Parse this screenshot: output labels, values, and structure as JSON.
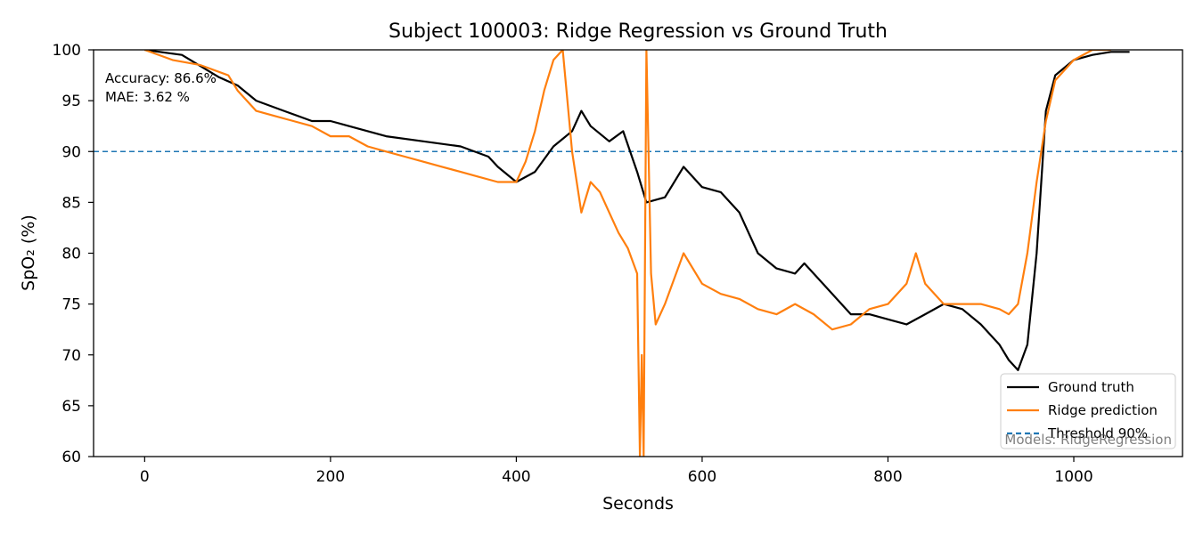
{
  "chart_data": {
    "type": "line",
    "title": "Subject 100003: Ridge Regression vs Ground Truth",
    "xlabel": "Seconds",
    "ylabel": "SpO₂ (%)",
    "xlim": [
      -55,
      1117
    ],
    "ylim": [
      60,
      100
    ],
    "x_ticks": [
      0,
      200,
      400,
      600,
      800,
      1000
    ],
    "y_ticks": [
      60,
      65,
      70,
      75,
      80,
      85,
      90,
      95,
      100
    ],
    "grid": false,
    "legend_position": "lower-right",
    "annotations": [
      "Accuracy: 86.6%",
      "MAE: 3.62 %"
    ],
    "watermark": "Models: RidgeRegression",
    "threshold": {
      "name": "Threshold 90%",
      "value": 90,
      "color": "#1f77b4",
      "style": "dashed"
    },
    "series": [
      {
        "name": "Ground truth",
        "color": "#000000",
        "x": [
          0,
          40,
          80,
          100,
          120,
          150,
          180,
          200,
          220,
          260,
          300,
          340,
          370,
          380,
          400,
          420,
          440,
          460,
          470,
          480,
          500,
          515,
          530,
          540,
          560,
          580,
          600,
          620,
          640,
          660,
          680,
          700,
          710,
          730,
          760,
          780,
          800,
          820,
          840,
          860,
          880,
          900,
          920,
          930,
          940,
          950,
          960,
          970,
          980,
          1000,
          1020,
          1040,
          1060
        ],
        "y": [
          100,
          99.5,
          97.3,
          96.5,
          95,
          94,
          93,
          93,
          92.5,
          91.5,
          91,
          90.5,
          89.5,
          88.5,
          87,
          88,
          90.5,
          92,
          94,
          92.5,
          91,
          92,
          88,
          85,
          85.5,
          88.5,
          86.5,
          86,
          84,
          80,
          78.5,
          78,
          79,
          77,
          74,
          74,
          73.5,
          73,
          74,
          75,
          74.5,
          73,
          71,
          69.5,
          68.5,
          71,
          80,
          94,
          97.5,
          99,
          99.5,
          99.8,
          99.8
        ]
      },
      {
        "name": "Ridge prediction",
        "color": "#ff7f0e",
        "x": [
          0,
          30,
          60,
          90,
          100,
          120,
          140,
          160,
          180,
          200,
          220,
          240,
          260,
          280,
          300,
          320,
          340,
          360,
          380,
          400,
          410,
          420,
          430,
          440,
          450,
          460,
          470,
          480,
          490,
          500,
          510,
          520,
          530,
          533,
          535,
          537,
          540,
          545,
          550,
          560,
          580,
          600,
          620,
          640,
          660,
          680,
          700,
          720,
          740,
          760,
          780,
          800,
          820,
          830,
          840,
          860,
          880,
          900,
          920,
          930,
          940,
          950,
          960,
          970,
          980,
          1000,
          1020,
          1040
        ],
        "y": [
          100,
          99,
          98.5,
          97.5,
          96,
          94,
          93.5,
          93,
          92.5,
          91.5,
          91.5,
          90.5,
          90,
          89.5,
          89,
          88.5,
          88,
          87.5,
          87,
          87,
          89,
          92,
          96,
          99,
          100,
          90,
          84,
          87,
          86,
          84,
          82,
          80.5,
          78,
          60,
          70,
          60,
          100,
          78,
          73,
          75,
          80,
          77,
          76,
          75.5,
          74.5,
          74,
          75,
          74,
          72.5,
          73,
          74.5,
          75,
          77,
          80,
          77,
          75,
          75,
          75,
          74.5,
          74,
          75,
          80,
          87,
          93,
          97,
          99,
          100,
          100
        ]
      }
    ]
  }
}
